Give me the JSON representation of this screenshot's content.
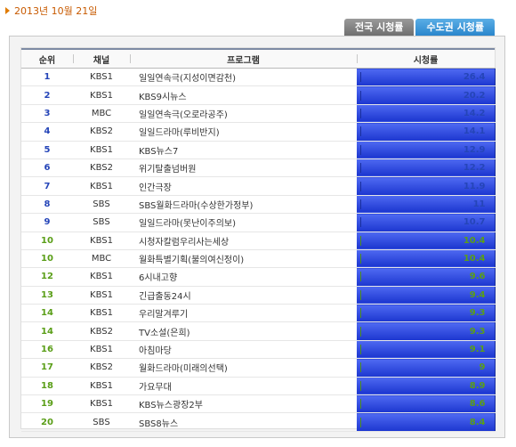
{
  "header": {
    "date": "2013년 10월 21일"
  },
  "tabs": [
    {
      "label": "전국 시청률",
      "active": false
    },
    {
      "label": "수도권 시청률",
      "active": true
    }
  ],
  "table": {
    "columns": [
      "순위",
      "채널",
      "프로그램",
      "시청률"
    ],
    "rows": [
      {
        "rank": "1",
        "channel": "KBS1",
        "program": "일일연속극(지성이면감천)",
        "rating": "26.4",
        "color": "blue"
      },
      {
        "rank": "2",
        "channel": "KBS1",
        "program": "KBS9시뉴스",
        "rating": "20.2",
        "color": "blue"
      },
      {
        "rank": "3",
        "channel": "MBC",
        "program": "일일연속극(오로라공주)",
        "rating": "14.2",
        "color": "blue"
      },
      {
        "rank": "4",
        "channel": "KBS2",
        "program": "일일드라마(루비반지)",
        "rating": "14.1",
        "color": "blue"
      },
      {
        "rank": "5",
        "channel": "KBS1",
        "program": "KBS뉴스7",
        "rating": "12.9",
        "color": "blue"
      },
      {
        "rank": "6",
        "channel": "KBS2",
        "program": "위기탈출넘버원",
        "rating": "12.2",
        "color": "blue"
      },
      {
        "rank": "7",
        "channel": "KBS1",
        "program": "인간극장",
        "rating": "11.9",
        "color": "blue"
      },
      {
        "rank": "8",
        "channel": "SBS",
        "program": "SBS월화드라마(수상한가정부)",
        "rating": "11",
        "color": "blue"
      },
      {
        "rank": "9",
        "channel": "SBS",
        "program": "일일드라마(못난이주의보)",
        "rating": "10.7",
        "color": "blue"
      },
      {
        "rank": "10",
        "channel": "KBS1",
        "program": "시청자칼럼우리사는세상",
        "rating": "10.4",
        "color": "green"
      },
      {
        "rank": "10",
        "channel": "MBC",
        "program": "월화특별기획(불의여신정이)",
        "rating": "10.4",
        "color": "green"
      },
      {
        "rank": "12",
        "channel": "KBS1",
        "program": "6시내고향",
        "rating": "9.6",
        "color": "green"
      },
      {
        "rank": "13",
        "channel": "KBS1",
        "program": "긴급출동24시",
        "rating": "9.4",
        "color": "green"
      },
      {
        "rank": "14",
        "channel": "KBS1",
        "program": "우리말겨루기",
        "rating": "9.3",
        "color": "green"
      },
      {
        "rank": "14",
        "channel": "KBS2",
        "program": "TV소설(은희)",
        "rating": "9.3",
        "color": "green"
      },
      {
        "rank": "16",
        "channel": "KBS1",
        "program": "아침마당",
        "rating": "9.1",
        "color": "green"
      },
      {
        "rank": "17",
        "channel": "KBS2",
        "program": "월화드라마(미래의선택)",
        "rating": "9",
        "color": "green"
      },
      {
        "rank": "18",
        "channel": "KBS1",
        "program": "가요무대",
        "rating": "8.9",
        "color": "green"
      },
      {
        "rank": "19",
        "channel": "KBS1",
        "program": "KBS뉴스광장2부",
        "rating": "8.6",
        "color": "green"
      },
      {
        "rank": "20",
        "channel": "SBS",
        "program": "SBS8뉴스",
        "rating": "8.4",
        "color": "green"
      }
    ]
  },
  "colors": {
    "blue_bar": "#2a45d8",
    "green_bar": "#6cbc26",
    "date_text": "#c85a00",
    "active_tab": "#2a86cc"
  }
}
